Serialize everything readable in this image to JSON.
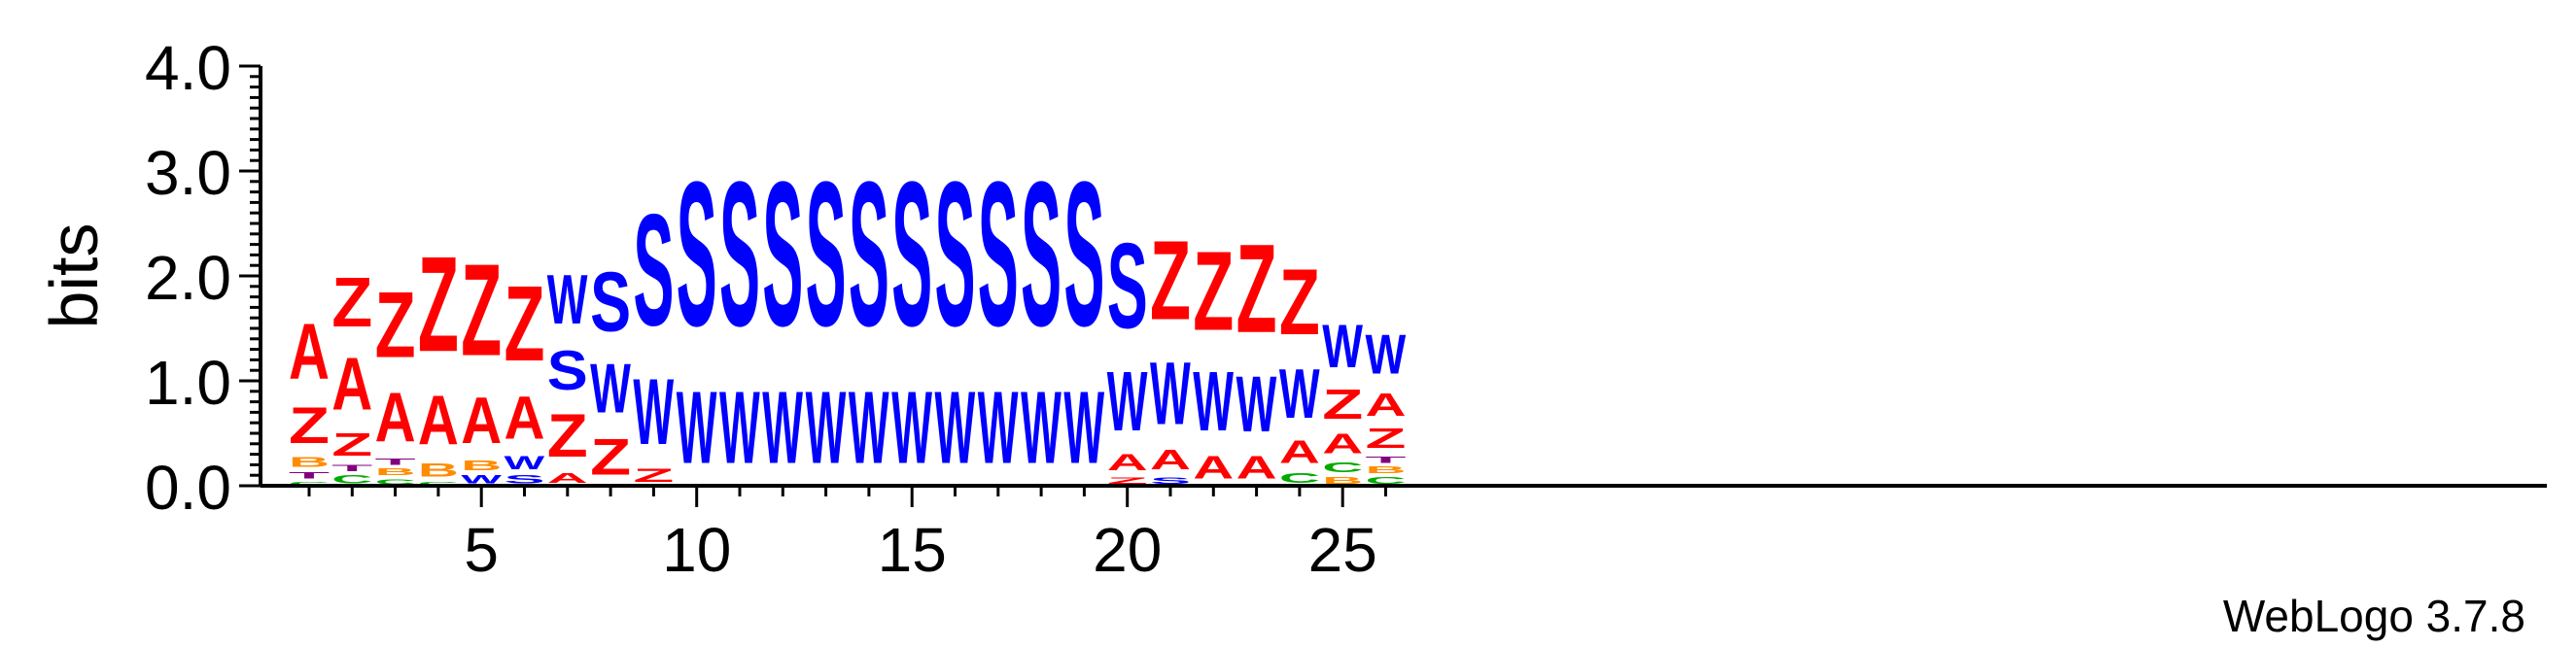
{
  "chart_data": {
    "type": "sequence-logo",
    "ylabel": "bits",
    "ylim": [
      0,
      4
    ],
    "yticks": [
      "0.0",
      "1.0",
      "2.0",
      "3.0",
      "4.0"
    ],
    "xticks": [
      5,
      10,
      15,
      20,
      25
    ],
    "positions": 26,
    "credit": "WebLogo 3.7.8",
    "colors": {
      "A": "#ff0000",
      "Z": "#ff0000",
      "S": "#0000ff",
      "W": "#0000ff",
      "B": "#ff8c00",
      "C": "#00aa00",
      "T": "#800080"
    },
    "stacks": [
      [
        [
          "C",
          0.05
        ],
        [
          "T",
          0.1
        ],
        [
          "B",
          0.15
        ],
        [
          "Z",
          0.55
        ],
        [
          "A",
          0.85
        ]
      ],
      [
        [
          "C",
          0.12
        ],
        [
          "T",
          0.1
        ],
        [
          "Z",
          0.35
        ],
        [
          "A",
          0.8
        ],
        [
          "Z",
          0.75
        ]
      ],
      [
        [
          "C",
          0.08
        ],
        [
          "B",
          0.1
        ],
        [
          "T",
          0.1
        ],
        [
          "A",
          0.75
        ],
        [
          "Z",
          1.0
        ]
      ],
      [
        [
          "C",
          0.05
        ],
        [
          "B",
          0.2
        ],
        [
          "A",
          0.75
        ],
        [
          "Z",
          1.45
        ]
      ],
      [
        [
          "W",
          0.12
        ],
        [
          "B",
          0.15
        ],
        [
          "A",
          0.7
        ],
        [
          "Z",
          1.4
        ]
      ],
      [
        [
          "S",
          0.12
        ],
        [
          "W",
          0.2
        ],
        [
          "A",
          0.65
        ],
        [
          "Z",
          1.15
        ]
      ],
      [
        [
          "A",
          0.15
        ],
        [
          "Z",
          0.65
        ],
        [
          "S",
          0.6
        ],
        [
          "W",
          0.75
        ]
      ],
      [
        [
          "Z",
          0.55
        ],
        [
          "W",
          0.75
        ],
        [
          "S",
          0.9
        ]
      ],
      [
        [
          "Z",
          0.2
        ],
        [
          "W",
          1.0
        ],
        [
          "S",
          1.7
        ]
      ],
      [
        [
          "W",
          1.1
        ],
        [
          "S",
          2.2
        ]
      ],
      [
        [
          "W",
          1.1
        ],
        [
          "S",
          2.2
        ]
      ],
      [
        [
          "W",
          1.1
        ],
        [
          "S",
          2.2
        ]
      ],
      [
        [
          "W",
          1.1
        ],
        [
          "S",
          2.2
        ]
      ],
      [
        [
          "W",
          1.1
        ],
        [
          "S",
          2.2
        ]
      ],
      [
        [
          "W",
          1.1
        ],
        [
          "S",
          2.2
        ]
      ],
      [
        [
          "W",
          1.1
        ],
        [
          "S",
          2.2
        ]
      ],
      [
        [
          "W",
          1.1
        ],
        [
          "S",
          2.2
        ]
      ],
      [
        [
          "W",
          1.1
        ],
        [
          "S",
          2.2
        ]
      ],
      [
        [
          "W",
          1.1
        ],
        [
          "S",
          2.2
        ]
      ],
      [
        [
          "Z",
          0.1
        ],
        [
          "A",
          0.25
        ],
        [
          "W",
          0.9
        ],
        [
          "S",
          1.3
        ]
      ],
      [
        [
          "S",
          0.1
        ],
        [
          "A",
          0.3
        ],
        [
          "W",
          0.95
        ],
        [
          "Z",
          1.2
        ]
      ],
      [
        [
          "A",
          0.35
        ],
        [
          "W",
          0.9
        ],
        [
          "Z",
          1.2
        ]
      ],
      [
        [
          "A",
          0.35
        ],
        [
          "W",
          0.85
        ],
        [
          "Z",
          1.35
        ]
      ],
      [
        [
          "C",
          0.15
        ],
        [
          "A",
          0.35
        ],
        [
          "W",
          0.75
        ],
        [
          "Z",
          1.0
        ]
      ],
      [
        [
          "B",
          0.1
        ],
        [
          "C",
          0.15
        ],
        [
          "A",
          0.3
        ],
        [
          "Z",
          0.45
        ],
        [
          "W",
          0.65
        ]
      ],
      [
        [
          "C",
          0.1
        ],
        [
          "B",
          0.1
        ],
        [
          "T",
          0.1
        ],
        [
          "Z",
          0.3
        ],
        [
          "A",
          0.35
        ],
        [
          "W",
          0.6
        ]
      ]
    ]
  }
}
